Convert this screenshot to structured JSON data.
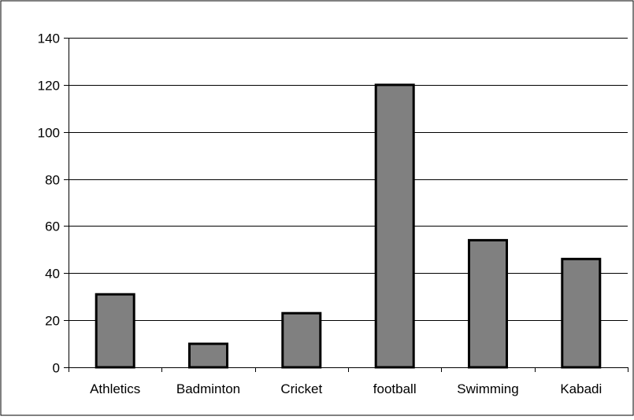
{
  "chart_data": {
    "type": "bar",
    "title": "",
    "xlabel": "",
    "ylabel": "",
    "categories": [
      "Athletics",
      "Badminton",
      "Cricket",
      "football",
      "Swimming",
      "Kabadi"
    ],
    "values": [
      31,
      10,
      23,
      120,
      54,
      46
    ],
    "ylim": [
      0,
      140
    ],
    "y_ticks": [
      "0",
      "20",
      "40",
      "60",
      "80",
      "100",
      "120",
      "140"
    ],
    "grid": "horizontal major gridlines on",
    "legend": "none",
    "colors": {
      "bar_fill": "#808080",
      "bar_stroke": "#000000",
      "gridline": "#000000",
      "axis": "#000000",
      "plot_background": "#ffffff",
      "frame": "#000000"
    }
  }
}
